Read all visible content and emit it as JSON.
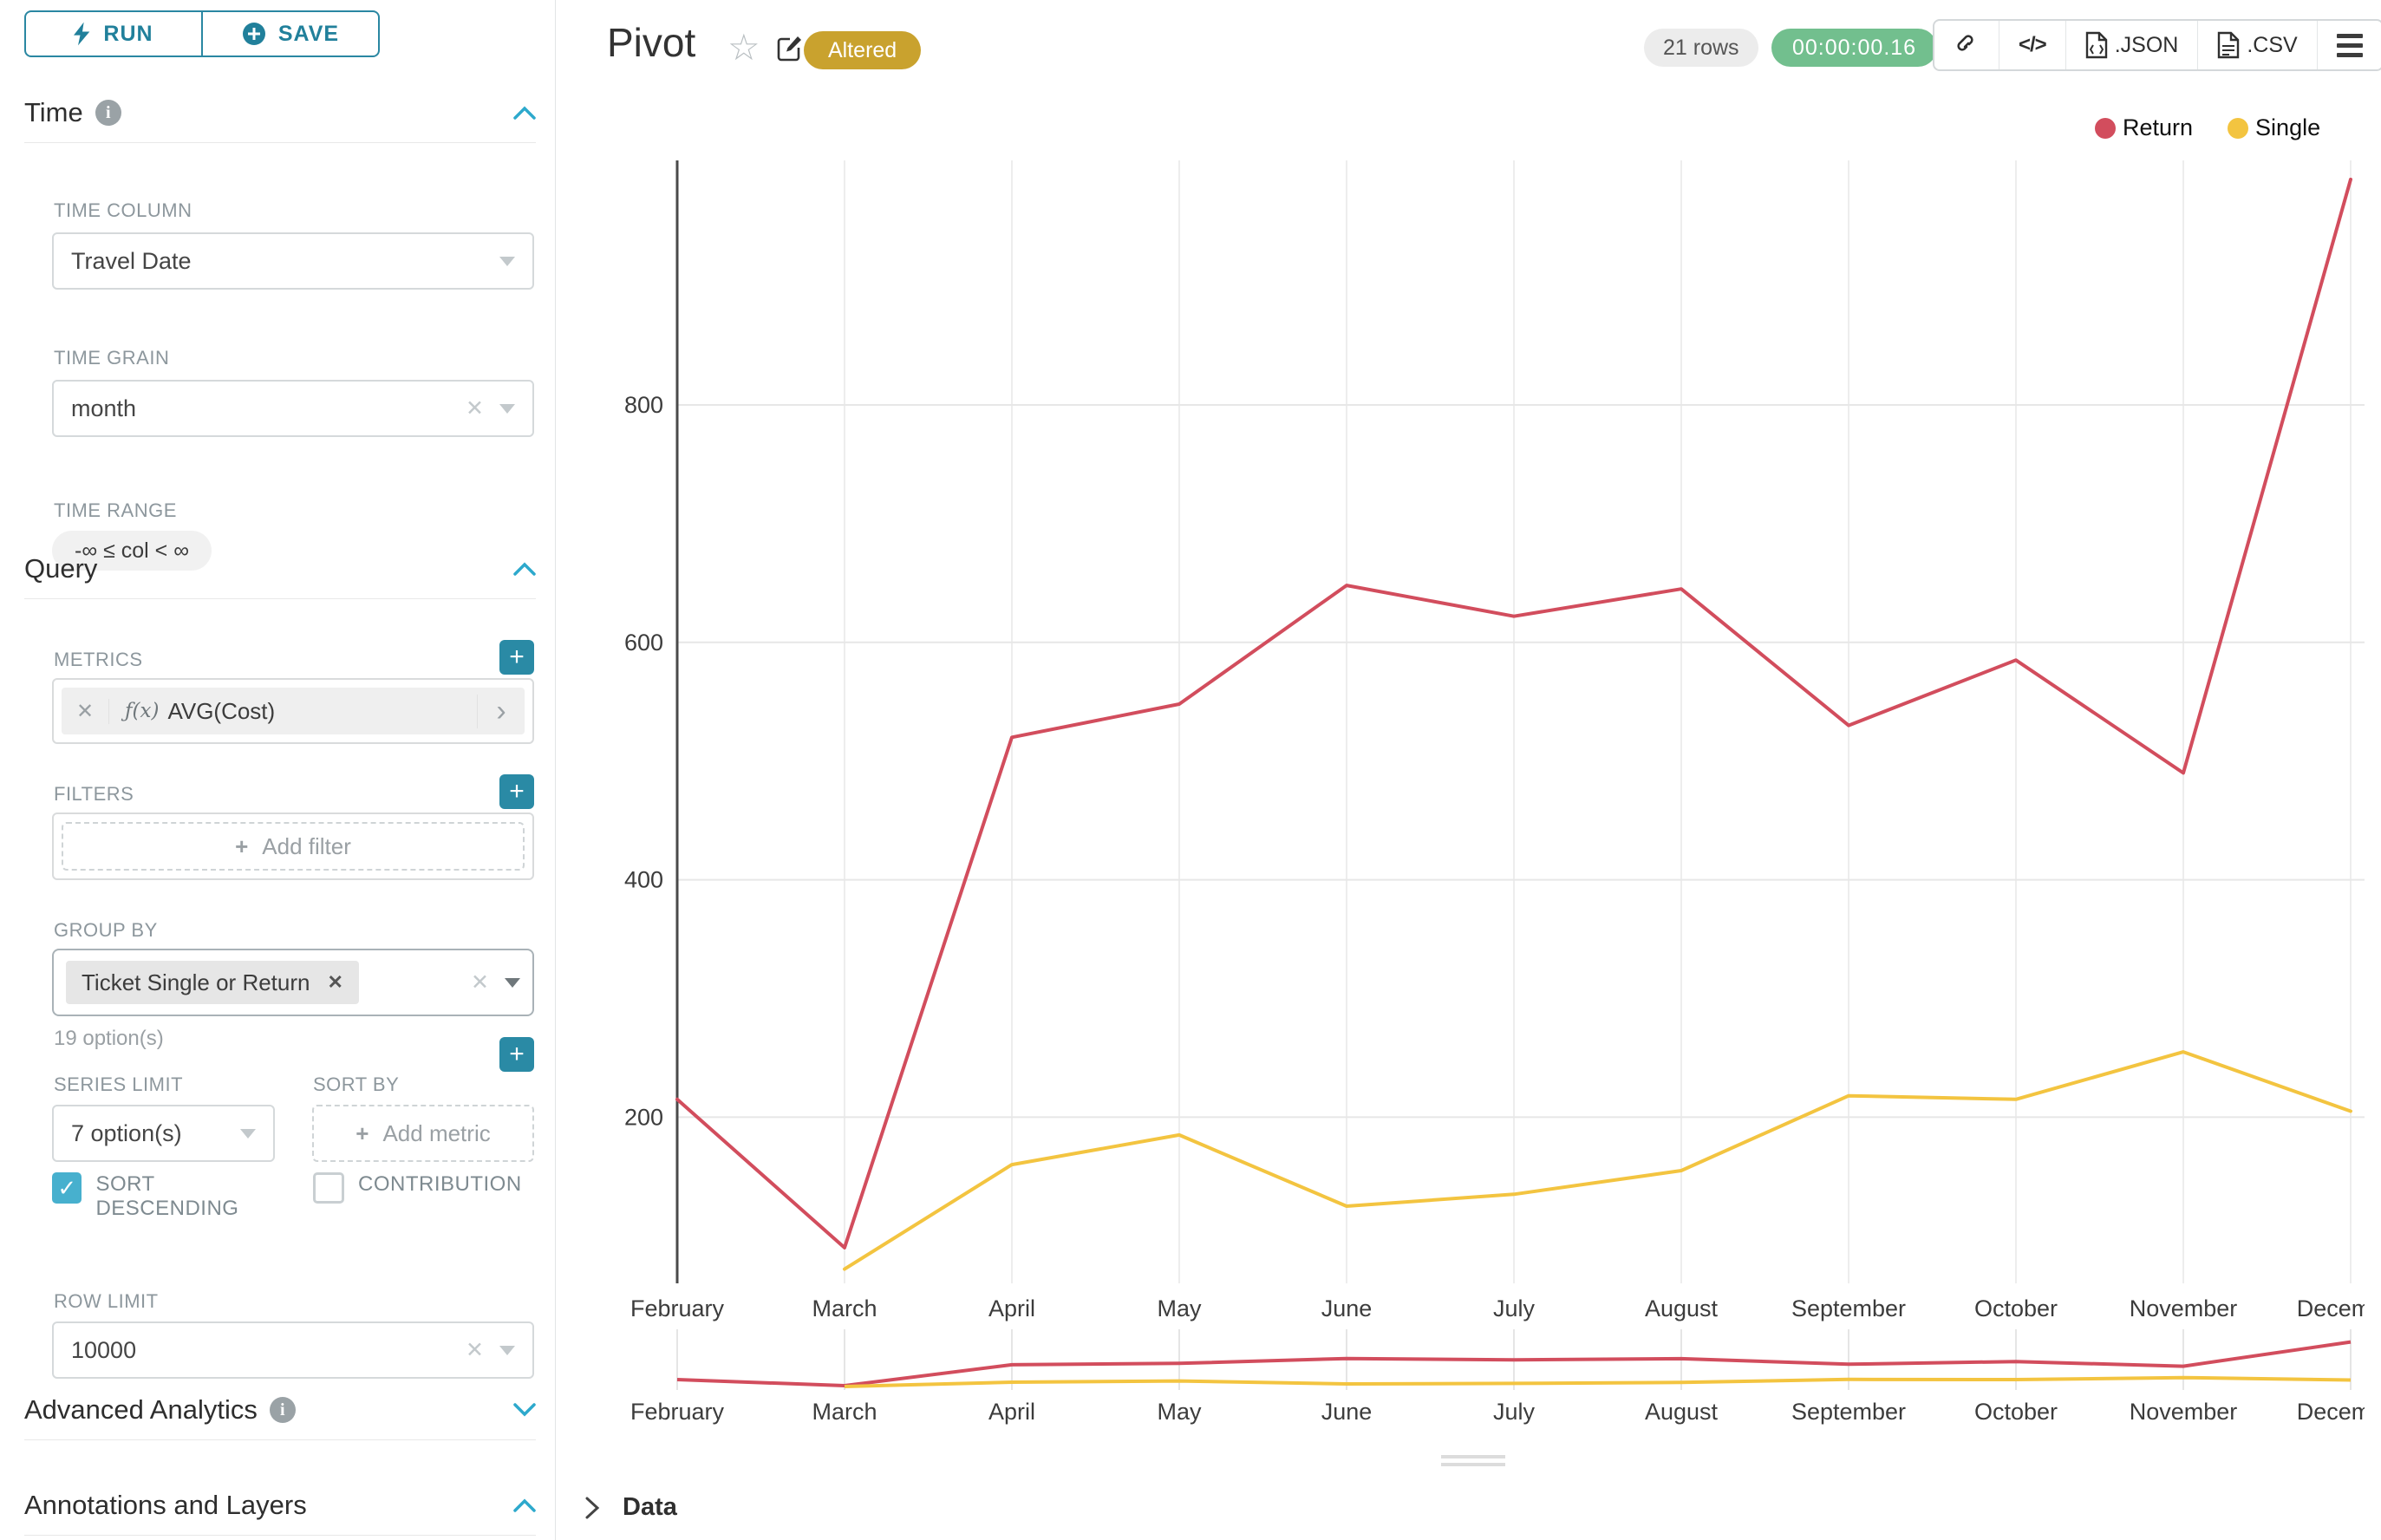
{
  "toolbar": {
    "run_label": "RUN",
    "save_label": "SAVE"
  },
  "sidebar": {
    "time": {
      "title": "Time",
      "time_column_label": "TIME COLUMN",
      "time_column_value": "Travel Date",
      "time_grain_label": "TIME GRAIN",
      "time_grain_value": "month",
      "time_range_label": "TIME RANGE",
      "time_range_value": "-∞ ≤ col < ∞"
    },
    "query": {
      "title": "Query",
      "metrics_label": "METRICS",
      "metric_fx": "ƒ(x)",
      "metric_value": "AVG(Cost)",
      "filters_label": "FILTERS",
      "add_filter_label": "Add filter",
      "group_by_label": "GROUP BY",
      "group_by_tag": "Ticket Single or Return",
      "group_by_hint": "19 option(s)",
      "series_limit_label": "SERIES LIMIT",
      "series_limit_value": "7 option(s)",
      "sort_by_label": "SORT BY",
      "add_metric_label": "Add metric",
      "sort_descending_label": "SORT DESCENDING",
      "contribution_label": "CONTRIBUTION",
      "row_limit_label": "ROW LIMIT",
      "row_limit_value": "10000"
    },
    "advanced_analytics_title": "Advanced Analytics",
    "annotations_title": "Annotations and Layers"
  },
  "header": {
    "title": "Pivot",
    "altered_badge": "Altered",
    "rows_badge": "21 rows",
    "timer": "00:00:00.16",
    "export_json": ".JSON",
    "export_csv": ".CSV"
  },
  "data_panel": {
    "label": "Data"
  },
  "chart_data": {
    "type": "line",
    "title": "Pivot",
    "categories": [
      "February",
      "March",
      "April",
      "May",
      "June",
      "July",
      "August",
      "September",
      "October",
      "November",
      "December"
    ],
    "series": [
      {
        "name": "Return",
        "color": "#d24d5d",
        "values": [
          215,
          90,
          520,
          548,
          648,
          622,
          645,
          530,
          585,
          490,
          990
        ]
      },
      {
        "name": "Single",
        "color": "#f3c440",
        "values": [
          null,
          72,
          160,
          185,
          125,
          135,
          155,
          218,
          215,
          255,
          205
        ]
      }
    ],
    "xlabel": "",
    "ylabel": "",
    "yticks": [
      200,
      400,
      600,
      800
    ],
    "ylim": [
      60,
      1006
    ],
    "grid": true,
    "legend_position": "top-right",
    "has_brush_minimap": true
  }
}
